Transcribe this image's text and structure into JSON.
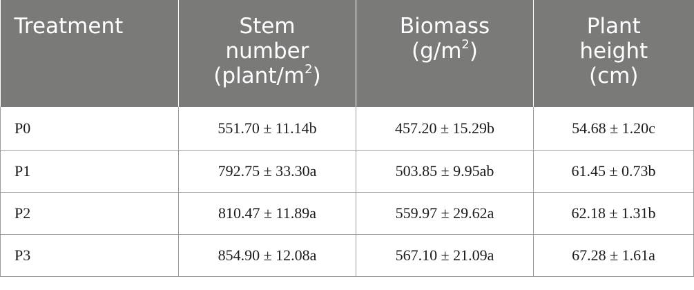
{
  "table": {
    "headers": [
      {
        "lines": [
          "Treatment"
        ],
        "sup": ""
      },
      {
        "lines": [
          "Stem",
          "number",
          "(plant/m"
        ],
        "sup": "2",
        "close": ")"
      },
      {
        "lines": [
          "Biomass",
          "(g/m"
        ],
        "sup": "2",
        "close": ")"
      },
      {
        "lines": [
          "Plant",
          "height",
          "(cm)"
        ],
        "sup": ""
      }
    ],
    "rows": [
      {
        "treatment": "P0",
        "stem": "551.70 ± 11.14b",
        "biomass": "457.20 ± 15.29b",
        "height": "54.68 ± 1.20c"
      },
      {
        "treatment": "P1",
        "stem": "792.75 ± 33.30a",
        "biomass": "503.85 ± 9.95ab",
        "height": "61.45 ± 0.73b"
      },
      {
        "treatment": "P2",
        "stem": "810.47 ± 11.89a",
        "biomass": "559.97 ± 29.62a",
        "height": "62.18 ± 1.31b"
      },
      {
        "treatment": "P3",
        "stem": "854.90 ± 12.08a",
        "biomass": "567.10 ± 21.09a",
        "height": "67.28 ± 1.61a"
      }
    ]
  }
}
